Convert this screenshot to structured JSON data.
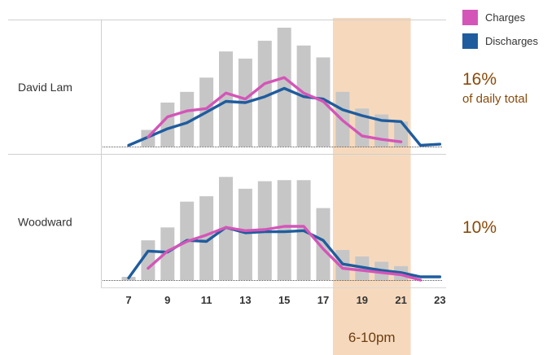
{
  "chart_data": {
    "type": "bar",
    "x": [
      7,
      8,
      9,
      10,
      11,
      12,
      13,
      14,
      15,
      16,
      17,
      18,
      19,
      20,
      21,
      22,
      23
    ],
    "x_ticks": [
      "7",
      "9",
      "11",
      "13",
      "15",
      "17",
      "19",
      "21",
      "23"
    ],
    "legend": [
      {
        "name": "Charges",
        "color": "#d455b8"
      },
      {
        "name": "Discharges",
        "color": "#1f5c9e"
      }
    ],
    "legend_placement": "top-right",
    "highlight": {
      "label": "6-10pm",
      "from": 17.5,
      "to": 21.5,
      "color": "#f6d9bd"
    },
    "ylim": [
      0,
      1
    ],
    "panels": [
      {
        "label": "David Lam",
        "percent": "16%",
        "percent_sub": "of daily total",
        "bars": [
          0,
          0.14,
          0.37,
          0.46,
          0.58,
          0.8,
          0.74,
          0.89,
          1.0,
          0.85,
          0.75,
          0.46,
          0.32,
          0.27,
          0.21,
          0,
          0
        ],
        "charges": [
          null,
          0.08,
          0.25,
          0.3,
          0.32,
          0.45,
          0.4,
          0.53,
          0.58,
          0.45,
          0.38,
          0.22,
          0.09,
          0.06,
          0.04,
          null,
          null
        ],
        "discharges": [
          0.01,
          0.08,
          0.15,
          0.2,
          0.29,
          0.38,
          0.37,
          0.42,
          0.49,
          0.42,
          0.4,
          0.31,
          0.26,
          0.22,
          0.21,
          0.01,
          0.02
        ]
      },
      {
        "label": "Woodward",
        "percent": "10%",
        "percent_sub": "",
        "bars": [
          0.03,
          0.37,
          0.49,
          0.73,
          0.78,
          0.96,
          0.85,
          0.92,
          0.93,
          0.93,
          0.67,
          0.28,
          0.22,
          0.17,
          0.13,
          0,
          0
        ],
        "charges": [
          null,
          0.11,
          0.27,
          0.36,
          0.42,
          0.49,
          0.46,
          0.47,
          0.5,
          0.5,
          0.29,
          0.11,
          0.09,
          0.07,
          0.05,
          0.0,
          null
        ],
        "discharges": [
          0.02,
          0.27,
          0.26,
          0.37,
          0.36,
          0.49,
          0.44,
          0.45,
          0.45,
          0.46,
          0.37,
          0.15,
          0.12,
          0.09,
          0.07,
          0.03,
          0.03
        ]
      }
    ]
  }
}
